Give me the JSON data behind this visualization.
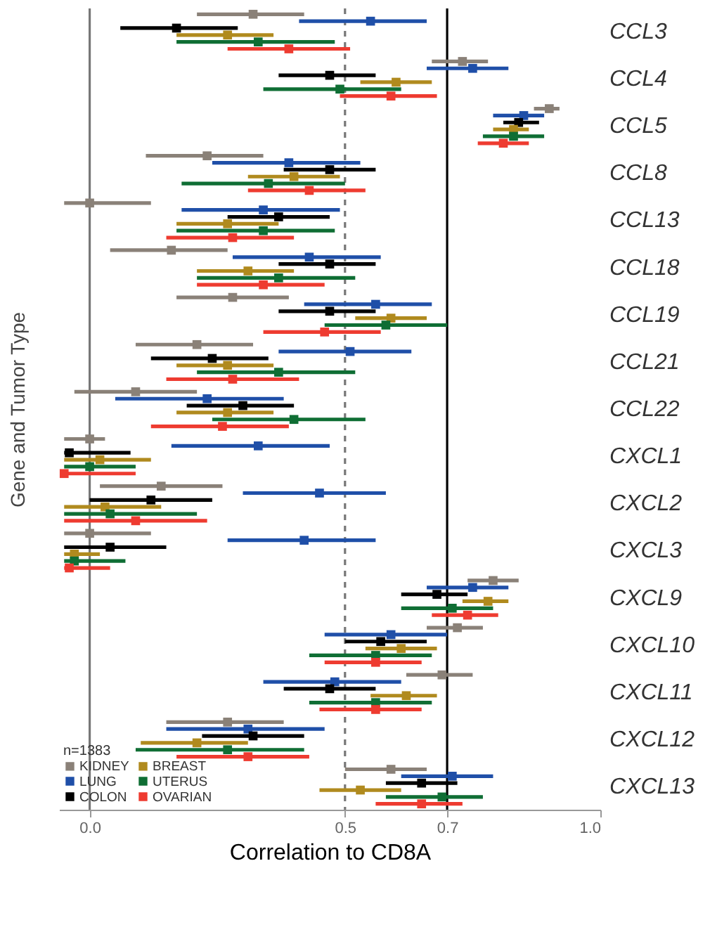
{
  "chart_data": {
    "type": "scatter",
    "orientation": "horizontal",
    "xlabel": "Correlation to CD8A",
    "ylabel": "Gene and Tumor Type",
    "legend_title": "n=1383",
    "categories": [
      "CCL3",
      "CCL4",
      "CCL5",
      "CCL8",
      "CCL13",
      "CCL18",
      "CCL19",
      "CCL21",
      "CCL22",
      "CXCL1",
      "CXCL2",
      "CXCL3",
      "CXCL9",
      "CXCL10",
      "CXCL11",
      "CXCL12",
      "CXCL13"
    ],
    "xlim": [
      -0.06,
      1.0
    ],
    "xticks": [
      {
        "value": 0,
        "label": "0.0"
      },
      0.5,
      0.7,
      {
        "value": 1,
        "label": "1.0"
      }
    ],
    "marker": "square",
    "grid": false,
    "legend": "bottom left",
    "ref_lines": [
      {
        "axis": "x",
        "value": 0,
        "color": "#777777",
        "line_style": "solid"
      },
      {
        "axis": "x",
        "value": 0.5,
        "color": "#777777",
        "line_style": "dashed"
      },
      {
        "axis": "x",
        "value": 0.7,
        "color": "#000000",
        "line_style": "solid"
      }
    ],
    "series": [
      {
        "name": "KIDNEY",
        "color": "#8a8178",
        "values": [
          0.32,
          0.73,
          0.9,
          0.23,
          0.0,
          0.16,
          0.28,
          0.21,
          0.09,
          0.0,
          0.14,
          0.0,
          0.79,
          0.72,
          0.69,
          0.27,
          0.59
        ],
        "errors": [
          [
            0.21,
            0.42
          ],
          [
            0.67,
            0.78
          ],
          [
            0.87,
            0.92
          ],
          [
            0.11,
            0.34
          ],
          [
            -0.05,
            0.12
          ],
          [
            0.04,
            0.27
          ],
          [
            0.17,
            0.39
          ],
          [
            0.09,
            0.32
          ],
          [
            -0.03,
            0.21
          ],
          [
            -0.05,
            0.03
          ],
          [
            0.02,
            0.26
          ],
          [
            -0.05,
            0.12
          ],
          [
            0.74,
            0.84
          ],
          [
            0.66,
            0.77
          ],
          [
            0.62,
            0.75
          ],
          [
            0.15,
            0.38
          ],
          [
            0.5,
            0.66
          ]
        ]
      },
      {
        "name": "LUNG",
        "color": "#1f4fa8",
        "values": [
          0.55,
          0.75,
          0.85,
          0.39,
          0.34,
          0.43,
          0.56,
          0.51,
          0.23,
          0.33,
          0.45,
          0.42,
          0.75,
          0.59,
          0.48,
          0.31,
          0.71
        ],
        "errors": [
          [
            0.41,
            0.66
          ],
          [
            0.66,
            0.82
          ],
          [
            0.79,
            0.89
          ],
          [
            0.24,
            0.53
          ],
          [
            0.18,
            0.49
          ],
          [
            0.28,
            0.57
          ],
          [
            0.42,
            0.67
          ],
          [
            0.37,
            0.63
          ],
          [
            0.05,
            0.38
          ],
          [
            0.16,
            0.47
          ],
          [
            0.3,
            0.58
          ],
          [
            0.27,
            0.56
          ],
          [
            0.66,
            0.82
          ],
          [
            0.46,
            0.7
          ],
          [
            0.34,
            0.61
          ],
          [
            0.15,
            0.46
          ],
          [
            0.61,
            0.79
          ]
        ]
      },
      {
        "name": "COLON",
        "color": "#000000",
        "values": [
          0.17,
          0.47,
          0.84,
          0.47,
          0.37,
          0.47,
          0.47,
          0.24,
          0.3,
          -0.04,
          0.12,
          0.04,
          0.68,
          0.57,
          0.47,
          0.32,
          0.65
        ],
        "errors": [
          [
            0.06,
            0.29
          ],
          [
            0.37,
            0.56
          ],
          [
            0.81,
            0.88
          ],
          [
            0.38,
            0.56
          ],
          [
            0.27,
            0.47
          ],
          [
            0.37,
            0.56
          ],
          [
            0.37,
            0.56
          ],
          [
            0.12,
            0.35
          ],
          [
            0.19,
            0.4
          ],
          [
            -0.05,
            0.08
          ],
          [
            0.0,
            0.24
          ],
          [
            -0.05,
            0.15
          ],
          [
            0.61,
            0.74
          ],
          [
            0.5,
            0.66
          ],
          [
            0.38,
            0.56
          ],
          [
            0.22,
            0.42
          ],
          [
            0.58,
            0.72
          ]
        ]
      },
      {
        "name": "BREAST",
        "color": "#b08a1e",
        "values": [
          0.27,
          0.6,
          0.83,
          0.4,
          0.27,
          0.31,
          0.59,
          0.27,
          0.27,
          0.02,
          0.03,
          -0.03,
          0.78,
          0.61,
          0.62,
          0.21,
          0.53
        ],
        "errors": [
          [
            0.17,
            0.36
          ],
          [
            0.53,
            0.67
          ],
          [
            0.79,
            0.86
          ],
          [
            0.31,
            0.49
          ],
          [
            0.17,
            0.37
          ],
          [
            0.21,
            0.4
          ],
          [
            0.52,
            0.66
          ],
          [
            0.17,
            0.36
          ],
          [
            0.17,
            0.36
          ],
          [
            -0.05,
            0.12
          ],
          [
            -0.05,
            0.14
          ],
          [
            -0.05,
            0.02
          ],
          [
            0.73,
            0.82
          ],
          [
            0.54,
            0.68
          ],
          [
            0.55,
            0.68
          ],
          [
            0.1,
            0.31
          ],
          [
            0.45,
            0.61
          ]
        ]
      },
      {
        "name": "UTERUS",
        "color": "#0f6e34",
        "values": [
          0.33,
          0.49,
          0.83,
          0.35,
          0.34,
          0.37,
          0.58,
          0.37,
          0.4,
          0.0,
          0.04,
          -0.03,
          0.71,
          0.56,
          0.56,
          0.27,
          0.69
        ],
        "errors": [
          [
            0.17,
            0.48
          ],
          [
            0.34,
            0.61
          ],
          [
            0.77,
            0.89
          ],
          [
            0.18,
            0.5
          ],
          [
            0.17,
            0.48
          ],
          [
            0.21,
            0.52
          ],
          [
            0.46,
            0.7
          ],
          [
            0.21,
            0.52
          ],
          [
            0.24,
            0.54
          ],
          [
            -0.05,
            0.09
          ],
          [
            -0.05,
            0.21
          ],
          [
            -0.05,
            0.07
          ],
          [
            0.61,
            0.79
          ],
          [
            0.43,
            0.67
          ],
          [
            0.43,
            0.67
          ],
          [
            0.09,
            0.42
          ],
          [
            0.58,
            0.77
          ]
        ]
      },
      {
        "name": "OVARIAN",
        "color": "#ee3b30",
        "values": [
          0.39,
          0.59,
          0.81,
          0.43,
          0.28,
          0.34,
          0.46,
          0.28,
          0.26,
          -0.05,
          0.09,
          -0.04,
          0.74,
          0.56,
          0.56,
          0.31,
          0.65
        ],
        "errors": [
          [
            0.27,
            0.51
          ],
          [
            0.49,
            0.68
          ],
          [
            0.76,
            0.86
          ],
          [
            0.31,
            0.54
          ],
          [
            0.15,
            0.4
          ],
          [
            0.21,
            0.46
          ],
          [
            0.34,
            0.57
          ],
          [
            0.15,
            0.41
          ],
          [
            0.12,
            0.39
          ],
          [
            -0.05,
            0.09
          ],
          [
            -0.05,
            0.23
          ],
          [
            -0.05,
            0.04
          ],
          [
            0.67,
            0.8
          ],
          [
            0.46,
            0.65
          ],
          [
            0.45,
            0.65
          ],
          [
            0.17,
            0.43
          ],
          [
            0.56,
            0.73
          ]
        ]
      }
    ]
  }
}
